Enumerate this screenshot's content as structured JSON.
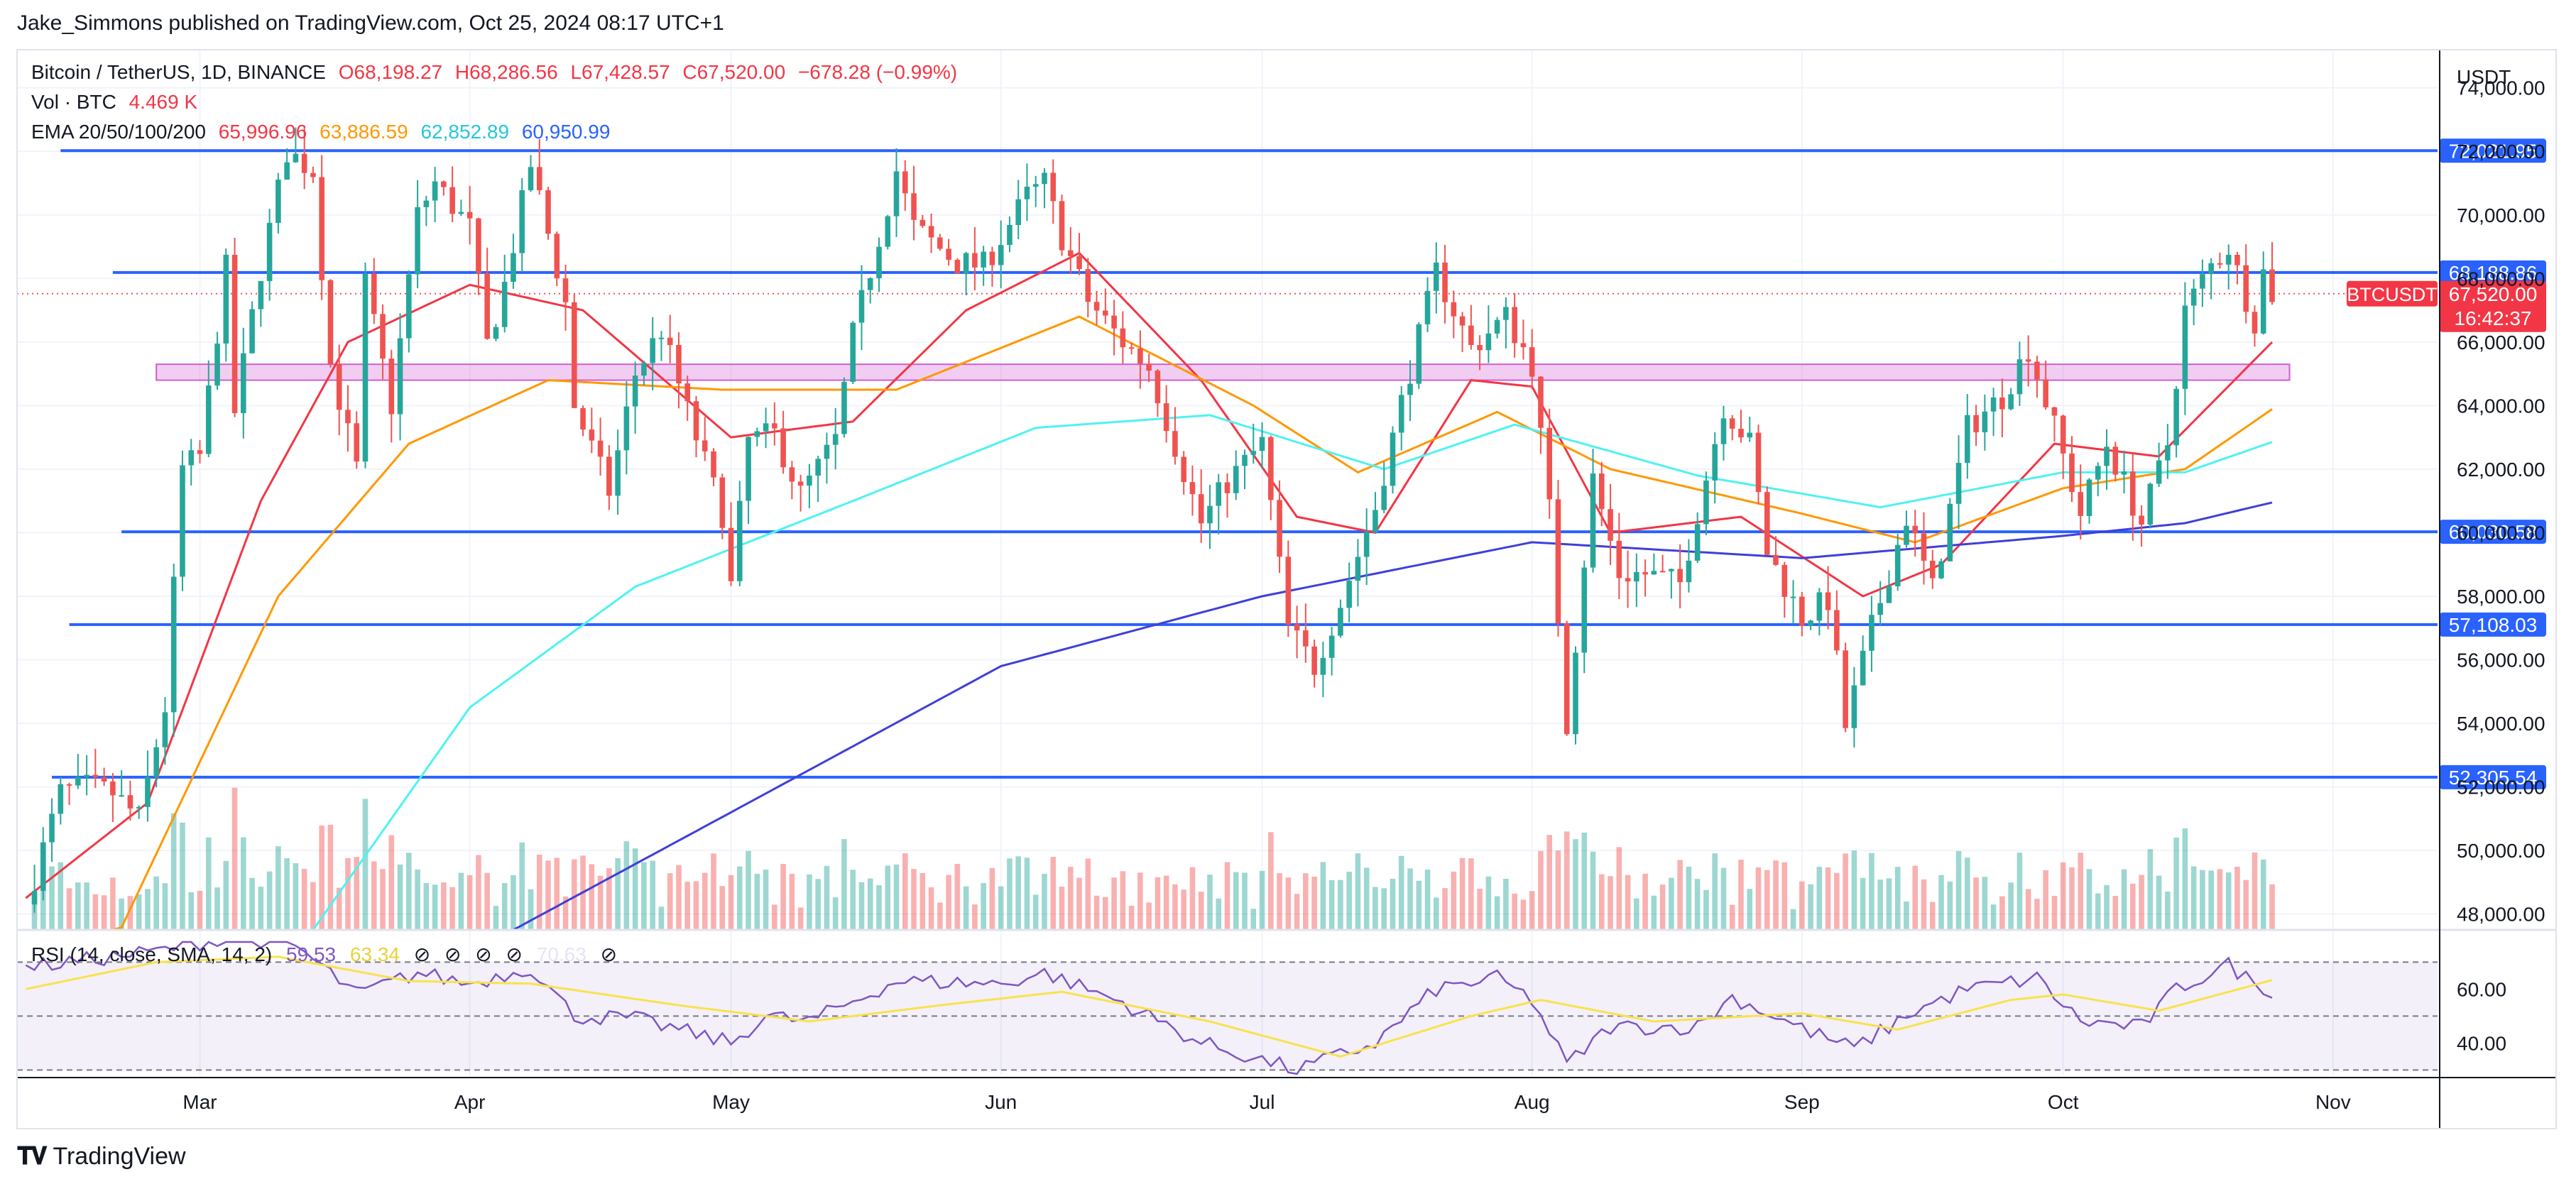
{
  "header": {
    "published": "Jake_Simmons published on TradingView.com, Oct 25, 2024 08:17 UTC+1"
  },
  "legend": {
    "symbol": "Bitcoin / TetherUS, 1D, BINANCE",
    "o": "O68,198.27",
    "h": "H68,286.56",
    "l": "L67,428.57",
    "c": "C67,520.00",
    "chg": "−678.28 (−0.99%)",
    "vol_label": "Vol · BTC",
    "vol_value": "4.469 K",
    "ema_label": "EMA 20/50/100/200",
    "ema20": "65,996.96",
    "ema50": "63,886.59",
    "ema100": "62,852.89",
    "ema200": "60,950.99"
  },
  "rsi_legend": {
    "label": "RSI (14, close, SMA, 14, 2)",
    "rsi": "59.53",
    "sma": "63.34",
    "extra": "70.63"
  },
  "brand": {
    "name": "TradingView"
  },
  "colors": {
    "up": "#26a69a",
    "down": "#ef5350",
    "level": "#2962ff",
    "ema20": "#f23645",
    "ema50": "#ff9800",
    "ema100": "#4ff2f2",
    "ema200": "#3f3fd9",
    "rsi": "#7e57c2",
    "rsi_sma": "#f9e24d",
    "zone": "#d15cd1"
  },
  "chart_data": {
    "type": "candlestick",
    "title": "Bitcoin / TetherUS, 1D, BINANCE",
    "currency": "USDT",
    "ylim": [
      47500,
      75200
    ],
    "y_ticks": [
      48000,
      50000,
      52000,
      54000,
      56000,
      58000,
      60000,
      62000,
      64000,
      66000,
      68000,
      70000,
      72000,
      74000
    ],
    "y_tick_labels": [
      "48,000.00",
      "50,000.00",
      "52,000.00",
      "54,000.00",
      "56,000.00",
      "58,000.00",
      "60,000.00",
      "62,000.00",
      "64,000.00",
      "66,000.00",
      "68,000.00",
      "70,000.00",
      "72,000.00",
      "74,000.00"
    ],
    "x_labels": [
      {
        "label": "Mar",
        "date": "2024-03-01"
      },
      {
        "label": "Apr",
        "date": "2024-04-01"
      },
      {
        "label": "May",
        "date": "2024-05-01"
      },
      {
        "label": "Jun",
        "date": "2024-06-01"
      },
      {
        "label": "Jul",
        "date": "2024-07-01"
      },
      {
        "label": "Aug",
        "date": "2024-08-01"
      },
      {
        "label": "Sep",
        "date": "2024-09-01"
      },
      {
        "label": "Oct",
        "date": "2024-10-01"
      },
      {
        "label": "Nov",
        "date": "2024-11-01"
      }
    ],
    "x_range": [
      "2024-02-09",
      "2024-11-13"
    ],
    "levels": [
      {
        "value": 72021.95,
        "label": "72,021.95",
        "from": "2024-02-14"
      },
      {
        "value": 68188.86,
        "label": "68,188.86",
        "from": "2024-02-20"
      },
      {
        "value": 60030.58,
        "label": "60,030.58",
        "from": "2024-02-21"
      },
      {
        "value": 57108.03,
        "label": "57,108.03",
        "from": "2024-02-15"
      },
      {
        "value": 52305.54,
        "label": "52,305.54",
        "from": "2024-02-13"
      }
    ],
    "zone": {
      "low": 64800,
      "high": 65300,
      "from": "2024-02-25",
      "to": "2024-10-27"
    },
    "last": {
      "symbol": "BTCUSDT",
      "price": "67,520.00",
      "timer": "16:42:37",
      "value": 67520
    },
    "candle_anchors": [
      [
        "2024-02-10",
        48300
      ],
      [
        "2024-02-14",
        51800
      ],
      [
        "2024-02-17",
        52000
      ],
      [
        "2024-02-20",
        51800
      ],
      [
        "2024-02-23",
        51000
      ],
      [
        "2024-02-26",
        54500
      ],
      [
        "2024-02-28",
        62000
      ],
      [
        "2024-03-01",
        62400
      ],
      [
        "2024-03-04",
        68300
      ],
      [
        "2024-03-05",
        63800
      ],
      [
        "2024-03-08",
        68300
      ],
      [
        "2024-03-11",
        72000
      ],
      [
        "2024-03-14",
        71400
      ],
      [
        "2024-03-16",
        65300
      ],
      [
        "2024-03-19",
        62000
      ],
      [
        "2024-03-20",
        67800
      ],
      [
        "2024-03-23",
        64000
      ],
      [
        "2024-03-26",
        70000
      ],
      [
        "2024-03-28",
        71000
      ],
      [
        "2024-04-01",
        69600
      ],
      [
        "2024-04-03",
        65900
      ],
      [
        "2024-04-05",
        67800
      ],
      [
        "2024-04-08",
        71600
      ],
      [
        "2024-04-12",
        67200
      ],
      [
        "2024-04-13",
        64000
      ],
      [
        "2024-04-17",
        61300
      ],
      [
        "2024-04-20",
        65000
      ],
      [
        "2024-04-23",
        66400
      ],
      [
        "2024-04-26",
        63800
      ],
      [
        "2024-04-30",
        60600
      ],
      [
        "2024-05-01",
        58300
      ],
      [
        "2024-05-03",
        62900
      ],
      [
        "2024-05-06",
        63100
      ],
      [
        "2024-05-09",
        61200
      ],
      [
        "2024-05-13",
        62900
      ],
      [
        "2024-05-15",
        66200
      ],
      [
        "2024-05-20",
        71400
      ],
      [
        "2024-05-22",
        69600
      ],
      [
        "2024-05-27",
        68500
      ],
      [
        "2024-05-30",
        68400
      ],
      [
        "2024-06-04",
        70600
      ],
      [
        "2024-06-06",
        71000
      ],
      [
        "2024-06-08",
        69300
      ],
      [
        "2024-06-11",
        67300
      ],
      [
        "2024-06-15",
        66000
      ],
      [
        "2024-06-18",
        65200
      ],
      [
        "2024-06-24",
        60300
      ],
      [
        "2024-06-27",
        61600
      ],
      [
        "2024-07-01",
        62800
      ],
      [
        "2024-07-04",
        57000
      ],
      [
        "2024-07-07",
        55800
      ],
      [
        "2024-07-10",
        57800
      ],
      [
        "2024-07-14",
        60800
      ],
      [
        "2024-07-17",
        64100
      ],
      [
        "2024-07-21",
        68200
      ],
      [
        "2024-07-25",
        65800
      ],
      [
        "2024-07-29",
        66800
      ],
      [
        "2024-08-01",
        65300
      ],
      [
        "2024-08-03",
        60700
      ],
      [
        "2024-08-05",
        54000
      ],
      [
        "2024-08-08",
        61700
      ],
      [
        "2024-08-11",
        58700
      ],
      [
        "2024-08-14",
        58700
      ],
      [
        "2024-08-18",
        58400
      ],
      [
        "2024-08-23",
        64000
      ],
      [
        "2024-08-26",
        62800
      ],
      [
        "2024-08-28",
        59400
      ],
      [
        "2024-09-01",
        57300
      ],
      [
        "2024-09-04",
        57900
      ],
      [
        "2024-09-06",
        53900
      ],
      [
        "2024-09-09",
        57000
      ],
      [
        "2024-09-13",
        60500
      ],
      [
        "2024-09-16",
        58200
      ],
      [
        "2024-09-20",
        63300
      ],
      [
        "2024-09-24",
        64300
      ],
      [
        "2024-09-27",
        65800
      ],
      [
        "2024-09-30",
        63300
      ],
      [
        "2024-10-03",
        60600
      ],
      [
        "2024-10-06",
        62800
      ],
      [
        "2024-10-10",
        60300
      ],
      [
        "2024-10-13",
        62800
      ],
      [
        "2024-10-15",
        67000
      ],
      [
        "2024-10-18",
        68400
      ],
      [
        "2024-10-20",
        69000
      ],
      [
        "2024-10-22",
        67400
      ],
      [
        "2024-10-23",
        66700
      ],
      [
        "2024-10-24",
        68198
      ],
      [
        "2024-10-25",
        67520
      ]
    ],
    "series": [
      {
        "name": "EMA 20",
        "last": 65996.96,
        "anchors": [
          [
            "2024-02-10",
            48500
          ],
          [
            "2024-02-24",
            51500
          ],
          [
            "2024-03-08",
            61000
          ],
          [
            "2024-03-18",
            66000
          ],
          [
            "2024-04-01",
            67800
          ],
          [
            "2024-04-14",
            67000
          ],
          [
            "2024-05-01",
            63000
          ],
          [
            "2024-05-15",
            63500
          ],
          [
            "2024-05-28",
            67000
          ],
          [
            "2024-06-10",
            68800
          ],
          [
            "2024-06-24",
            64800
          ],
          [
            "2024-07-05",
            60500
          ],
          [
            "2024-07-14",
            60000
          ],
          [
            "2024-07-25",
            64800
          ],
          [
            "2024-08-01",
            64600
          ],
          [
            "2024-08-10",
            60000
          ],
          [
            "2024-08-25",
            60500
          ],
          [
            "2024-09-08",
            58000
          ],
          [
            "2024-09-17",
            59000
          ],
          [
            "2024-09-30",
            62800
          ],
          [
            "2024-10-12",
            62400
          ],
          [
            "2024-10-25",
            65997
          ]
        ]
      },
      {
        "name": "EMA 50",
        "last": 63886.59,
        "anchors": [
          [
            "2024-02-20",
            47000
          ],
          [
            "2024-03-10",
            58000
          ],
          [
            "2024-03-25",
            62800
          ],
          [
            "2024-04-10",
            64800
          ],
          [
            "2024-04-30",
            64500
          ],
          [
            "2024-05-20",
            64500
          ],
          [
            "2024-06-10",
            66800
          ],
          [
            "2024-06-30",
            64000
          ],
          [
            "2024-07-12",
            61900
          ],
          [
            "2024-07-28",
            63800
          ],
          [
            "2024-08-10",
            62000
          ],
          [
            "2024-09-01",
            60600
          ],
          [
            "2024-09-14",
            59700
          ],
          [
            "2024-10-01",
            61400
          ],
          [
            "2024-10-15",
            62000
          ],
          [
            "2024-10-25",
            63887
          ]
        ]
      },
      {
        "name": "EMA 100",
        "last": 62852.89,
        "anchors": [
          [
            "2024-03-14",
            47500
          ],
          [
            "2024-04-01",
            54500
          ],
          [
            "2024-04-20",
            58300
          ],
          [
            "2024-05-15",
            61000
          ],
          [
            "2024-06-05",
            63300
          ],
          [
            "2024-06-25",
            63700
          ],
          [
            "2024-07-15",
            62000
          ],
          [
            "2024-07-30",
            63400
          ],
          [
            "2024-08-20",
            61800
          ],
          [
            "2024-09-10",
            60800
          ],
          [
            "2024-10-01",
            61900
          ],
          [
            "2024-10-15",
            61900
          ],
          [
            "2024-10-25",
            62853
          ]
        ]
      },
      {
        "name": "EMA 200",
        "last": 60950.99,
        "anchors": [
          [
            "2024-04-06",
            47500
          ],
          [
            "2024-05-01",
            51200
          ],
          [
            "2024-06-01",
            55800
          ],
          [
            "2024-07-01",
            58000
          ],
          [
            "2024-08-01",
            59700
          ],
          [
            "2024-09-01",
            59200
          ],
          [
            "2024-10-01",
            59900
          ],
          [
            "2024-10-15",
            60300
          ],
          [
            "2024-10-25",
            60951
          ]
        ]
      }
    ],
    "rsi": {
      "ylim": [
        28,
        78
      ],
      "y_ticks": [
        40,
        60
      ],
      "y_tick_labels": [
        "40.00",
        "60.00"
      ],
      "bands": [
        30,
        50,
        70
      ],
      "series": [
        {
          "name": "RSI",
          "last": 59.53,
          "anchors": [
            [
              "2024-02-10",
              68
            ],
            [
              "2024-02-25",
              74
            ],
            [
              "2024-03-05",
              80
            ],
            [
              "2024-03-12",
              76
            ],
            [
              "2024-03-19",
              58
            ],
            [
              "2024-03-26",
              66
            ],
            [
              "2024-04-01",
              62
            ],
            [
              "2024-04-08",
              68
            ],
            [
              "2024-04-13",
              50
            ],
            [
              "2024-04-20",
              49
            ],
            [
              "2024-05-01",
              40
            ],
            [
              "2024-05-05",
              50
            ],
            [
              "2024-05-10",
              48
            ],
            [
              "2024-05-20",
              63
            ],
            [
              "2024-06-01",
              62
            ],
            [
              "2024-06-06",
              66
            ],
            [
              "2024-06-15",
              55
            ],
            [
              "2024-06-24",
              40
            ],
            [
              "2024-07-05",
              30
            ],
            [
              "2024-07-14",
              40
            ],
            [
              "2024-07-21",
              60
            ],
            [
              "2024-07-28",
              64
            ],
            [
              "2024-08-01",
              56
            ],
            [
              "2024-08-05",
              32
            ],
            [
              "2024-08-10",
              46
            ],
            [
              "2024-08-20",
              46
            ],
            [
              "2024-08-24",
              57
            ],
            [
              "2024-09-02",
              44
            ],
            [
              "2024-09-07",
              38
            ],
            [
              "2024-09-14",
              52
            ],
            [
              "2024-09-20",
              60
            ],
            [
              "2024-09-28",
              64
            ],
            [
              "2024-10-03",
              48
            ],
            [
              "2024-10-10",
              46
            ],
            [
              "2024-10-14",
              60
            ],
            [
              "2024-10-20",
              69
            ],
            [
              "2024-10-23",
              62
            ],
            [
              "2024-10-25",
              59.53
            ]
          ]
        },
        {
          "name": "RSI SMA",
          "last": 63.34,
          "anchors": [
            [
              "2024-02-10",
              60
            ],
            [
              "2024-02-25",
              70
            ],
            [
              "2024-03-10",
              72
            ],
            [
              "2024-03-25",
              63
            ],
            [
              "2024-04-08",
              62
            ],
            [
              "2024-04-25",
              54
            ],
            [
              "2024-05-10",
              48
            ],
            [
              "2024-05-25",
              54
            ],
            [
              "2024-06-08",
              59
            ],
            [
              "2024-06-25",
              48
            ],
            [
              "2024-07-10",
              35
            ],
            [
              "2024-07-25",
              50
            ],
            [
              "2024-08-02",
              56
            ],
            [
              "2024-08-15",
              48
            ],
            [
              "2024-09-01",
              51
            ],
            [
              "2024-09-12",
              45
            ],
            [
              "2024-09-25",
              56
            ],
            [
              "2024-10-01",
              58
            ],
            [
              "2024-10-12",
              52
            ],
            [
              "2024-10-25",
              63.34
            ]
          ]
        }
      ]
    }
  }
}
